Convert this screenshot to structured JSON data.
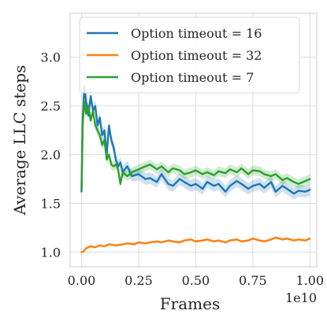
{
  "chart_data": {
    "type": "line",
    "xlabel": "Frames",
    "ylabel": "Average LLC steps",
    "x_offset_label": "1e10",
    "xlim": [
      -0.05,
      1.03
    ],
    "ylim": [
      0.85,
      3.45
    ],
    "xticks": [
      0.0,
      0.25,
      0.5,
      0.75,
      1.0
    ],
    "xtick_labels": [
      "0.00",
      "0.25",
      "0.50",
      "0.75",
      "1.00"
    ],
    "yticks": [
      1.0,
      1.5,
      2.0,
      2.5,
      3.0
    ],
    "ytick_labels": [
      "1.0",
      "1.5",
      "2.0",
      "2.5",
      "3.0"
    ],
    "grid": true,
    "legend_position": "top-right",
    "series": [
      {
        "name": "Option timeout = 16",
        "color": "#1f77b4",
        "band": 0.06,
        "x": [
          0.0,
          0.005,
          0.012,
          0.02,
          0.03,
          0.04,
          0.05,
          0.06,
          0.07,
          0.08,
          0.09,
          0.1,
          0.11,
          0.12,
          0.13,
          0.14,
          0.15,
          0.16,
          0.17,
          0.18,
          0.2,
          0.22,
          0.25,
          0.28,
          0.3,
          0.33,
          0.35,
          0.38,
          0.4,
          0.43,
          0.45,
          0.48,
          0.5,
          0.53,
          0.55,
          0.58,
          0.6,
          0.63,
          0.65,
          0.68,
          0.7,
          0.73,
          0.75,
          0.78,
          0.8,
          0.83,
          0.85,
          0.88,
          0.9,
          0.93,
          0.95,
          0.98,
          1.0
        ],
        "y": [
          1.62,
          2.35,
          2.7,
          2.55,
          2.4,
          2.6,
          2.45,
          2.5,
          2.3,
          2.38,
          2.2,
          2.25,
          2.0,
          2.3,
          2.15,
          2.08,
          1.95,
          1.88,
          1.92,
          1.82,
          1.88,
          1.78,
          1.8,
          1.75,
          1.76,
          1.72,
          1.8,
          1.7,
          1.68,
          1.75,
          1.72,
          1.68,
          1.7,
          1.65,
          1.72,
          1.68,
          1.7,
          1.62,
          1.68,
          1.73,
          1.7,
          1.65,
          1.68,
          1.7,
          1.66,
          1.72,
          1.62,
          1.68,
          1.65,
          1.6,
          1.63,
          1.62,
          1.64
        ]
      },
      {
        "name": "Option timeout = 32",
        "color": "#ff7f0e",
        "band": 0.012,
        "x": [
          0.0,
          0.01,
          0.02,
          0.04,
          0.06,
          0.08,
          0.1,
          0.12,
          0.15,
          0.18,
          0.2,
          0.23,
          0.25,
          0.28,
          0.3,
          0.33,
          0.35,
          0.38,
          0.4,
          0.43,
          0.45,
          0.48,
          0.5,
          0.53,
          0.55,
          0.58,
          0.6,
          0.63,
          0.65,
          0.68,
          0.7,
          0.73,
          0.75,
          0.78,
          0.8,
          0.83,
          0.85,
          0.88,
          0.9,
          0.93,
          0.95,
          0.98,
          1.0
        ],
        "y": [
          1.0,
          1.01,
          1.04,
          1.06,
          1.05,
          1.07,
          1.06,
          1.08,
          1.07,
          1.08,
          1.09,
          1.08,
          1.1,
          1.09,
          1.1,
          1.11,
          1.1,
          1.12,
          1.11,
          1.1,
          1.12,
          1.13,
          1.11,
          1.12,
          1.13,
          1.11,
          1.12,
          1.1,
          1.12,
          1.13,
          1.11,
          1.12,
          1.14,
          1.12,
          1.11,
          1.13,
          1.15,
          1.13,
          1.14,
          1.12,
          1.13,
          1.12,
          1.14
        ]
      },
      {
        "name": "Option timeout = 7",
        "color": "#2ca02c",
        "band": 0.05,
        "x": [
          0.0,
          0.005,
          0.012,
          0.02,
          0.03,
          0.04,
          0.05,
          0.06,
          0.07,
          0.08,
          0.09,
          0.1,
          0.11,
          0.12,
          0.13,
          0.14,
          0.15,
          0.16,
          0.17,
          0.18,
          0.2,
          0.22,
          0.25,
          0.28,
          0.3,
          0.33,
          0.35,
          0.38,
          0.4,
          0.43,
          0.45,
          0.48,
          0.5,
          0.53,
          0.55,
          0.58,
          0.6,
          0.63,
          0.65,
          0.68,
          0.7,
          0.73,
          0.75,
          0.78,
          0.8,
          0.83,
          0.85,
          0.88,
          0.9,
          0.93,
          0.95,
          0.98,
          1.0
        ],
        "y": [
          1.65,
          2.3,
          2.55,
          2.42,
          2.5,
          2.35,
          2.45,
          2.3,
          2.25,
          2.2,
          2.1,
          2.15,
          1.95,
          2.0,
          1.9,
          1.88,
          1.9,
          1.85,
          1.7,
          1.82,
          1.78,
          1.82,
          1.85,
          1.88,
          1.9,
          1.85,
          1.88,
          1.82,
          1.86,
          1.84,
          1.8,
          1.82,
          1.84,
          1.8,
          1.82,
          1.79,
          1.83,
          1.81,
          1.85,
          1.82,
          1.86,
          1.8,
          1.84,
          1.83,
          1.8,
          1.78,
          1.8,
          1.74,
          1.76,
          1.72,
          1.7,
          1.73,
          1.75
        ]
      }
    ]
  }
}
